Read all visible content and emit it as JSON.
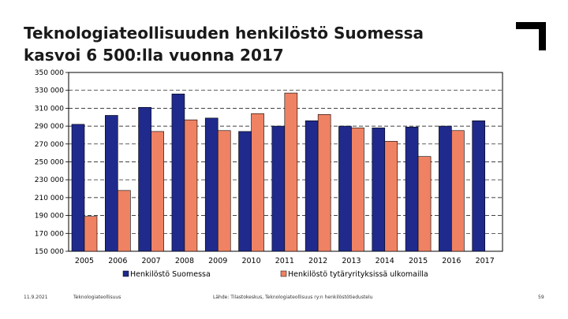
{
  "header": {
    "title_line1": "Teknologiateollisuuden henkilöstö Suomessa",
    "title_line2": "kasvoi 6 500:lla vuonna 2017"
  },
  "footer": {
    "date": "11.9.2021",
    "org": "Teknologiateollisuus",
    "source": "Lähde: Tilastokeskus, Teknologiateollisuus ry:n henkilöstötiedustelu",
    "page": "59"
  },
  "chart_data": {
    "type": "bar",
    "categories": [
      "2005",
      "2006",
      "2007",
      "2008",
      "2009",
      "2010",
      "2011",
      "2012",
      "2013",
      "2014",
      "2015",
      "2016",
      "2017"
    ],
    "series": [
      {
        "name": "Henkilöstö Suomessa",
        "color": "#1f2a8c",
        "values": [
          292000,
          302000,
          311000,
          326000,
          299000,
          284000,
          290000,
          296000,
          290000,
          288000,
          289000,
          290000,
          296000
        ]
      },
      {
        "name": "Henkilöstö tytäryrityksissä ulkomailla",
        "color": "#f08264",
        "values": [
          189000,
          218000,
          284000,
          297000,
          285000,
          304000,
          327000,
          303000,
          288000,
          273000,
          256000,
          285000,
          null
        ]
      }
    ],
    "yticks": [
      "150 000",
      "170 000",
      "190 000",
      "210 000",
      "230 000",
      "250 000",
      "270 000",
      "290 000",
      "310 000",
      "330 000",
      "350 000"
    ],
    "ylim": [
      150000,
      350000
    ],
    "ystep": 20000,
    "grid": true,
    "legend": "bottom"
  }
}
